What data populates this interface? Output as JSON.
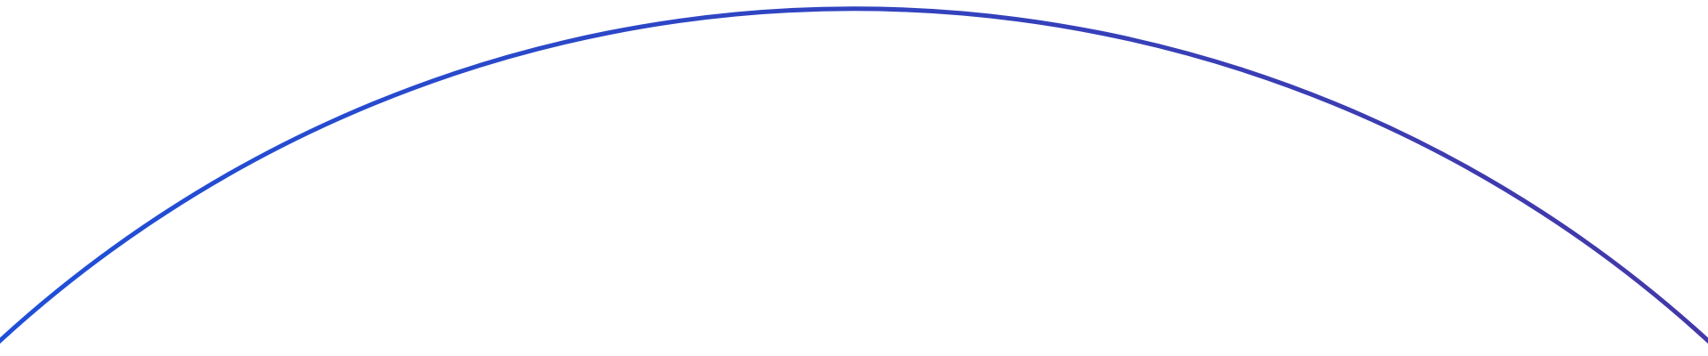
{
  "decoration": {
    "shape": "arc",
    "stroke_gradient": {
      "start_color": "#1f4fd8",
      "end_color": "#4338a8"
    },
    "background_color": "#ffffff"
  }
}
